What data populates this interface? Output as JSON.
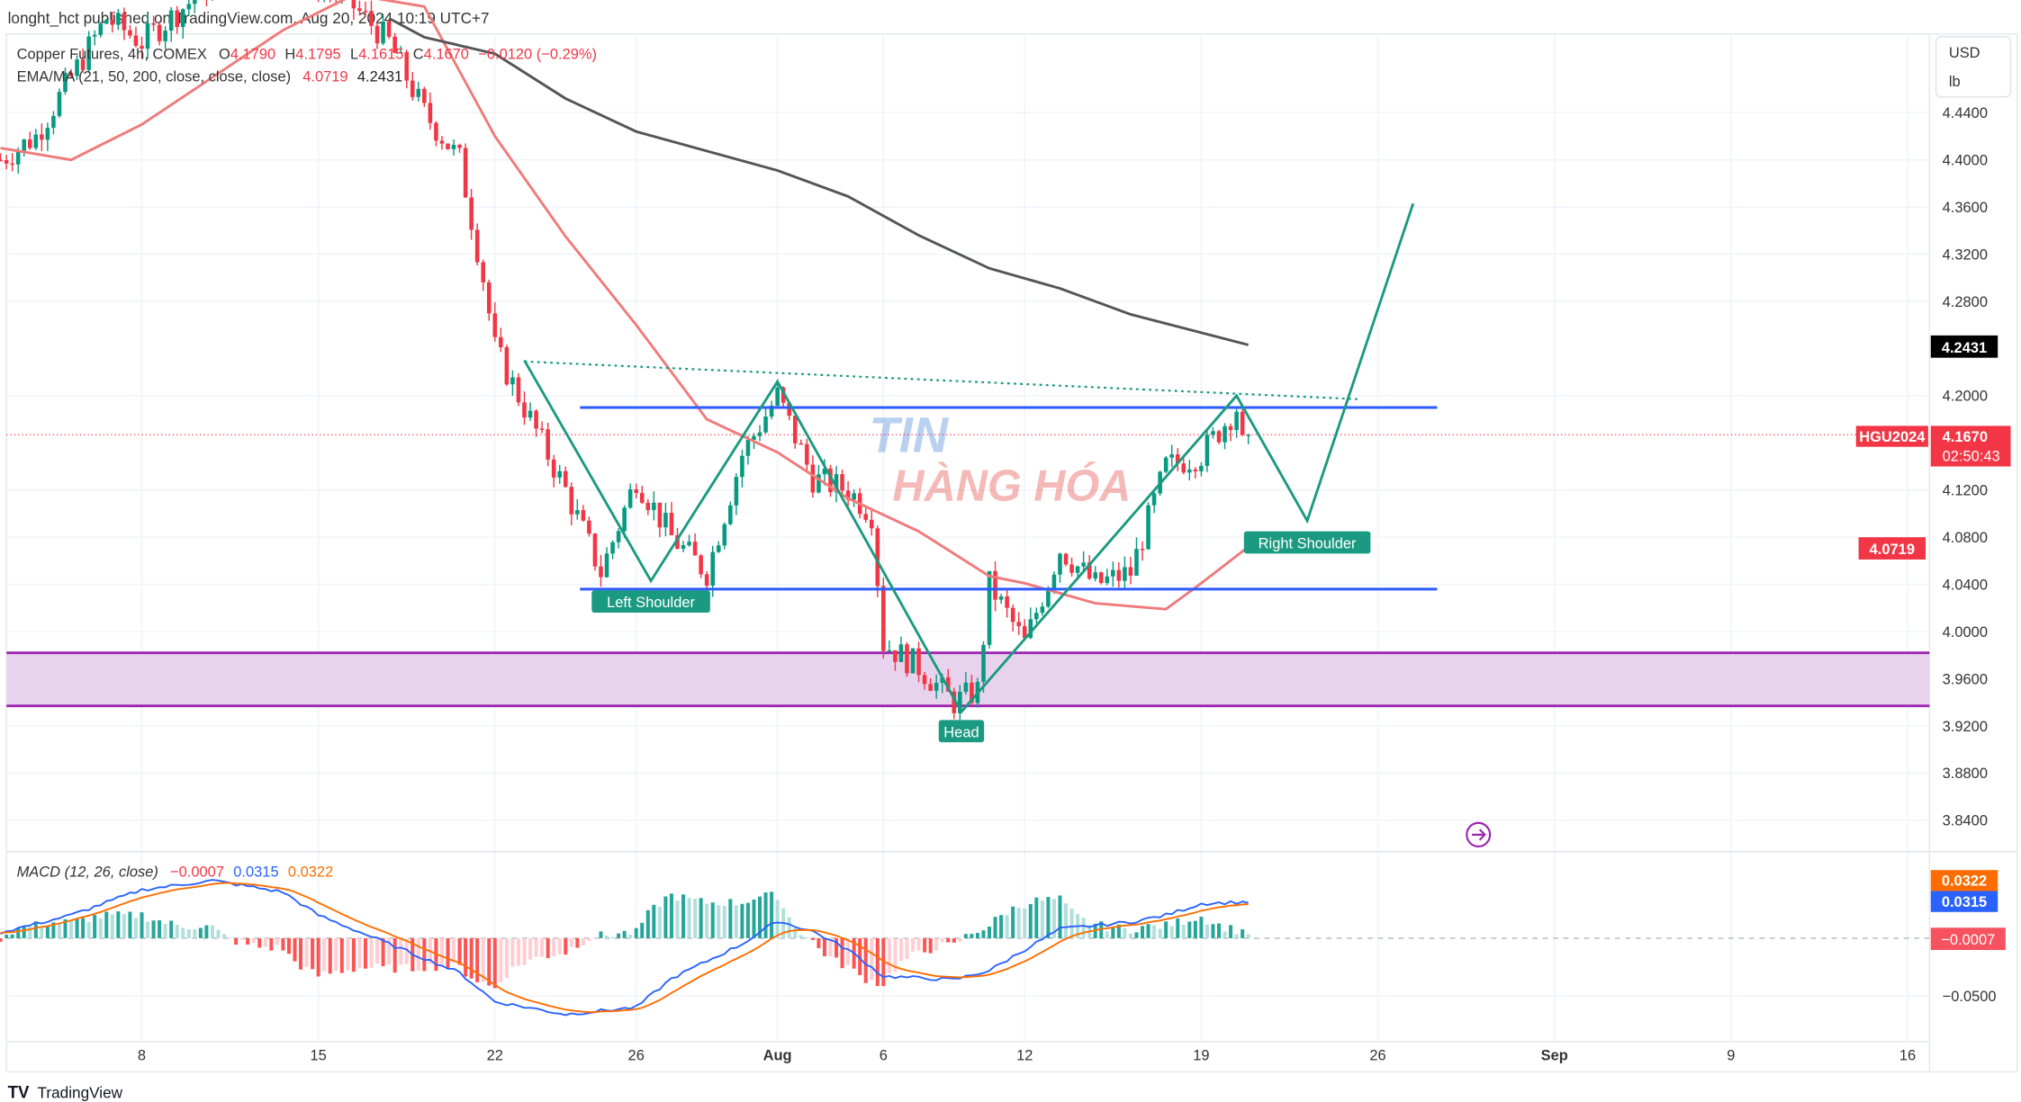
{
  "header": {
    "published": "longht_hct published on TradingView.com, Aug 20, 2024 10:19 UTC+7"
  },
  "legend": {
    "symbol": "Copper Futures, 4h, COMEX",
    "o_label": "O",
    "o": "4.1790",
    "h_label": "H",
    "h": "4.1795",
    "l_label": "L",
    "l": "4.1615",
    "c_label": "C",
    "c": "4.1670",
    "change": "−0.0120 (−0.29%)",
    "ma_label": "EMA/MA (21, 50, 200, close, close, close)",
    "ema_value": "4.0719",
    "ma_value": "4.2431",
    "macd_label": "MACD (12, 26, close)",
    "macd_hist": "−0.0007",
    "macd_line": "0.0315",
    "macd_signal": "0.0322"
  },
  "currency_box": {
    "currency": "USD",
    "unit": "lb"
  },
  "badges": {
    "ma": "4.2431",
    "symbol": "HGU2024",
    "price": "4.1670",
    "countdown": "02:50:43",
    "ema": "4.0719",
    "signal": "0.0322",
    "macd": "0.0315",
    "hist": "−0.0007"
  },
  "watermark": {
    "line1": "TIN",
    "line2": "HÀNG HÓA"
  },
  "footer": {
    "logo": "TradingView"
  },
  "colors": {
    "up": "#089981",
    "down": "#f23645",
    "ema": "#f07a7a",
    "ma": "#555555",
    "pattern": "#1a9a80",
    "level": "#2e5bff",
    "zone": "#9c27b0",
    "macd": "#2962ff",
    "signal": "#ff6d00"
  },
  "chart_data": {
    "type": "candlestick",
    "timeframe": "4h",
    "y_ticks": [
      "4.4400",
      "4.4000",
      "4.3600",
      "4.3200",
      "4.2800",
      "4.2000",
      "4.1200",
      "4.0800",
      "4.0400",
      "4.0000",
      "3.9600",
      "3.9200",
      "3.8800",
      "3.8400"
    ],
    "x_ticks": [
      {
        "label": "8",
        "date": "2024-07-08"
      },
      {
        "label": "15",
        "date": "2024-07-15"
      },
      {
        "label": "22",
        "date": "2024-07-22"
      },
      {
        "label": "26",
        "date": "2024-07-26"
      },
      {
        "label": "Aug",
        "date": "2024-08-01"
      },
      {
        "label": "6",
        "date": "2024-08-06"
      },
      {
        "label": "12",
        "date": "2024-08-12"
      },
      {
        "label": "19",
        "date": "2024-08-19"
      },
      {
        "label": "26",
        "date": "2024-08-26"
      },
      {
        "label": "Sep",
        "date": "2024-09-02"
      },
      {
        "label": "9",
        "date": "2024-09-09"
      },
      {
        "label": "16",
        "date": "2024-09-16"
      }
    ],
    "price_path": [
      [
        "2024-07-02",
        4.4
      ],
      [
        "2024-07-03",
        4.42
      ],
      [
        "2024-07-05",
        4.52
      ],
      [
        "2024-07-08",
        4.5
      ],
      [
        "2024-07-10",
        4.55
      ],
      [
        "2024-07-12",
        4.57
      ],
      [
        "2024-07-16",
        4.53
      ],
      [
        "2024-07-17",
        4.5
      ],
      [
        "2024-07-18",
        4.44
      ],
      [
        "2024-07-19",
        4.4
      ],
      [
        "2024-07-19 16",
        4.3
      ],
      [
        "2024-07-22",
        4.24
      ],
      [
        "2024-07-23",
        4.18
      ],
      [
        "2024-07-24",
        4.12
      ],
      [
        "2024-07-25",
        4.05
      ],
      [
        "2024-07-26",
        4.13
      ],
      [
        "2024-07-29",
        4.08
      ],
      [
        "2024-07-30",
        4.05
      ],
      [
        "2024-07-31",
        4.15
      ],
      [
        "2024-08-01",
        4.2
      ],
      [
        "2024-08-02",
        4.13
      ],
      [
        "2024-08-05",
        4.12
      ],
      [
        "2024-08-05 16",
        4.1
      ],
      [
        "2024-08-06",
        3.99
      ],
      [
        "2024-08-07",
        3.97
      ],
      [
        "2024-08-08",
        3.94
      ],
      [
        "2024-08-08 16",
        3.95
      ],
      [
        "2024-08-09",
        4.04
      ],
      [
        "2024-08-12",
        3.99
      ],
      [
        "2024-08-13",
        4.07
      ],
      [
        "2024-08-14",
        4.04
      ],
      [
        "2024-08-15",
        4.05
      ],
      [
        "2024-08-16",
        4.14
      ],
      [
        "2024-08-19",
        4.15
      ],
      [
        "2024-08-20",
        4.19
      ],
      [
        "2024-08-20 8",
        4.167
      ]
    ],
    "ema21": [
      [
        "2024-07-02",
        4.41
      ],
      [
        "2024-07-04",
        4.4
      ],
      [
        "2024-07-08",
        4.43
      ],
      [
        "2024-07-10",
        4.47
      ],
      [
        "2024-07-12",
        4.51
      ],
      [
        "2024-07-16",
        4.54
      ],
      [
        "2024-07-18",
        4.53
      ],
      [
        "2024-07-22",
        4.42
      ],
      [
        "2024-07-24",
        4.335
      ],
      [
        "2024-07-26",
        4.26
      ],
      [
        "2024-07-30",
        4.18
      ],
      [
        "2024-08-01",
        4.152
      ],
      [
        "2024-08-05",
        4.113
      ],
      [
        "2024-08-07",
        4.085
      ],
      [
        "2024-08-09",
        4.047
      ],
      [
        "2024-08-12",
        4.041
      ],
      [
        "2024-08-14",
        4.024
      ],
      [
        "2024-08-16",
        4.019
      ],
      [
        "2024-08-19",
        4.041
      ],
      [
        "2024-08-20 8",
        4.0719
      ]
    ],
    "ma200": [
      [
        "2024-07-17",
        4.52
      ],
      [
        "2024-07-18",
        4.504
      ],
      [
        "2024-07-22",
        4.49
      ],
      [
        "2024-07-24",
        4.452
      ],
      [
        "2024-07-26",
        4.424
      ],
      [
        "2024-08-01",
        4.391
      ],
      [
        "2024-08-05",
        4.369
      ],
      [
        "2024-08-07",
        4.336
      ],
      [
        "2024-08-09",
        4.308
      ],
      [
        "2024-08-13",
        4.291
      ],
      [
        "2024-08-15",
        4.269
      ],
      [
        "2024-08-20 8",
        4.2431
      ]
    ],
    "pattern": {
      "zigzag": [
        [
          "2024-07-22 20",
          4.23
        ],
        [
          "2024-07-26 10",
          4.043
        ],
        [
          "2024-08-01",
          4.212
        ],
        [
          "2024-08-08 5",
          3.932
        ],
        [
          "2024-08-20",
          4.2
        ],
        [
          "2024-08-22",
          4.094
        ],
        [
          "2024-08-27",
          4.363
        ]
      ],
      "neckline": [
        [
          "2024-07-22 20",
          4.229
        ],
        [
          "2024-08-23 12",
          4.197
        ]
      ],
      "resistance": 4.19,
      "support": 4.036,
      "zone": [
        3.937,
        3.982
      ],
      "labels": [
        {
          "text": "Left Shoulder",
          "date": "2024-07-26 10",
          "price": 4.025
        },
        {
          "text": "Head",
          "date": "2024-08-08 5",
          "price": 3.915
        },
        {
          "text": "Right Shoulder",
          "date": "2024-08-22",
          "price": 4.075
        }
      ]
    },
    "macd_ticks": [
      "-0.0500"
    ],
    "macd_path": [
      [
        "2024-07-02",
        0.005
      ],
      [
        "2024-07-04",
        0.02
      ],
      [
        "2024-07-08",
        0.042
      ],
      [
        "2024-07-10",
        0.05
      ],
      [
        "2024-07-12",
        0.04
      ],
      [
        "2024-07-15",
        0.02
      ],
      [
        "2024-07-17",
        -0.005
      ],
      [
        "2024-07-19",
        -0.03
      ],
      [
        "2024-07-22",
        -0.055
      ],
      [
        "2024-07-24",
        -0.066
      ],
      [
        "2024-07-26",
        -0.06
      ],
      [
        "2024-07-29",
        -0.035
      ],
      [
        "2024-07-31",
        -0.005
      ],
      [
        "2024-08-01",
        0.015
      ],
      [
        "2024-08-02",
        0.006
      ],
      [
        "2024-08-05",
        -0.01
      ],
      [
        "2024-08-06",
        -0.033
      ],
      [
        "2024-08-08",
        -0.036
      ],
      [
        "2024-08-09",
        -0.028
      ],
      [
        "2024-08-12",
        -0.01
      ],
      [
        "2024-08-13",
        0.008
      ],
      [
        "2024-08-15",
        0.014
      ],
      [
        "2024-08-16",
        0.02
      ],
      [
        "2024-08-19",
        0.03
      ],
      [
        "2024-08-20 8",
        0.0315
      ]
    ]
  }
}
